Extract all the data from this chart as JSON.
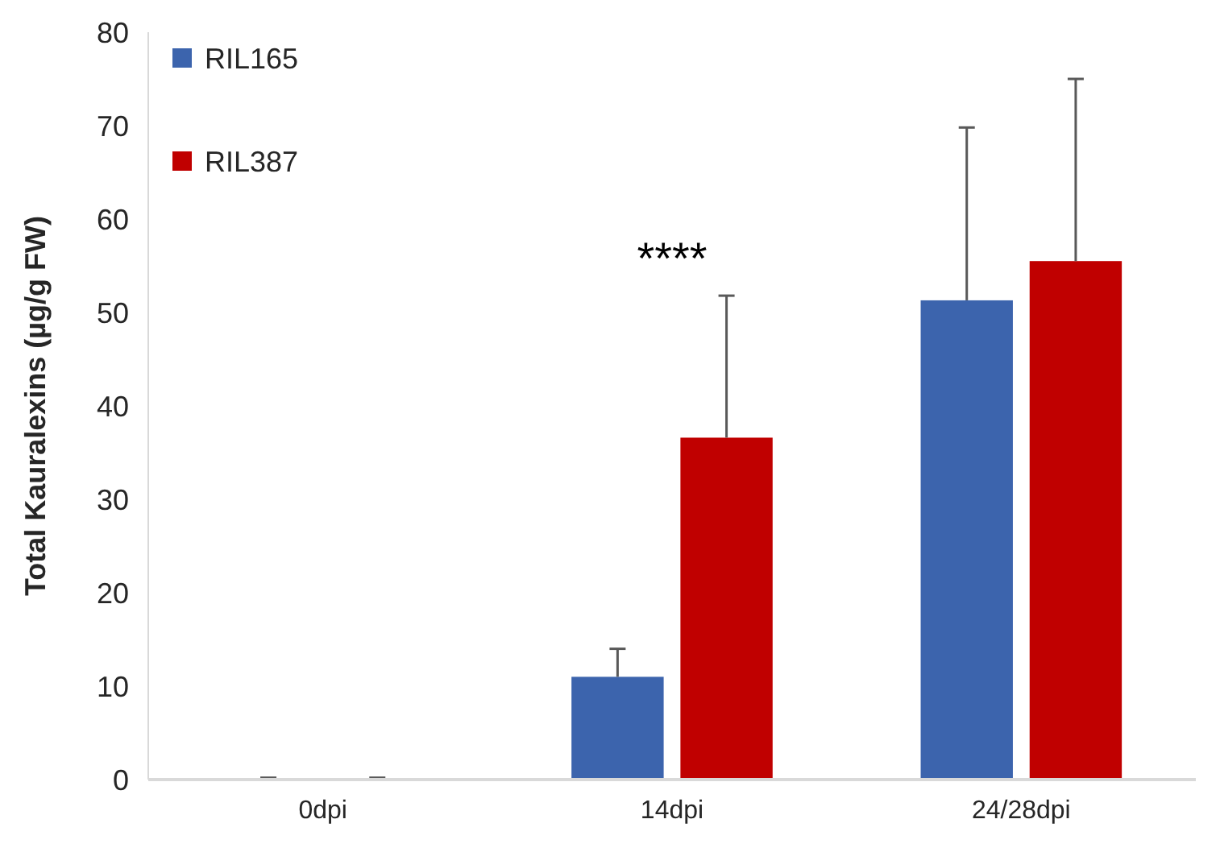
{
  "chart_data": {
    "type": "bar",
    "ylabel": "Total Kauralexins (µg/g FW)",
    "categories": [
      "0dpi",
      "14dpi",
      "24/28dpi"
    ],
    "series": [
      {
        "name": "RIL165",
        "color": "#3c64ad",
        "values": [
          0.1,
          11,
          51.3
        ],
        "errors": [
          [
            0.1,
            0.2
          ],
          [
            11,
            14
          ],
          [
            51.3,
            69.8
          ]
        ]
      },
      {
        "name": "RIL387",
        "color": "#c00000",
        "values": [
          0.1,
          36.6,
          55.5
        ],
        "errors": [
          [
            0.1,
            0.2
          ],
          [
            36.6,
            51.8
          ],
          [
            55.5,
            75
          ]
        ]
      }
    ],
    "ylim": [
      0,
      80
    ],
    "yticks": [
      0,
      10,
      20,
      30,
      40,
      50,
      60,
      70,
      80
    ],
    "grid": false,
    "legend": "top left",
    "annotations": [
      "****"
    ]
  }
}
